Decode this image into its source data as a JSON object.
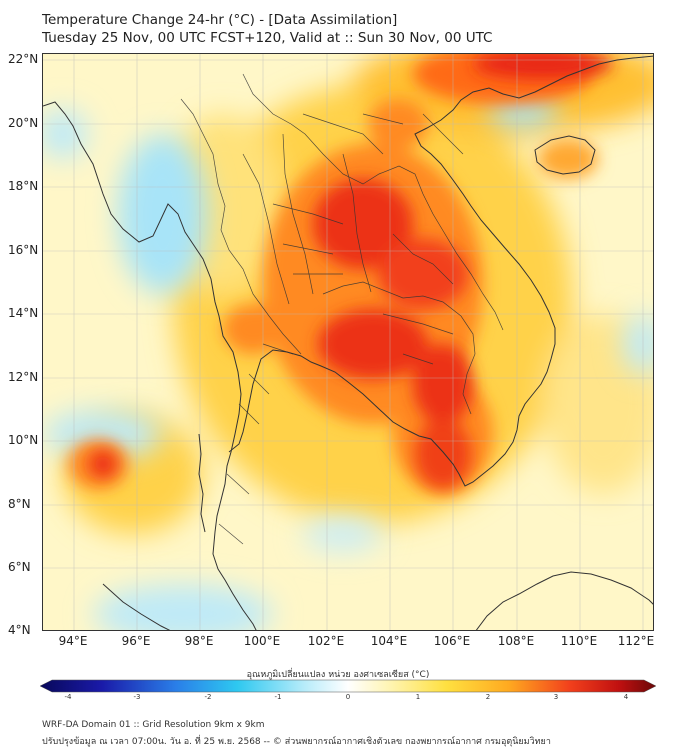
{
  "header": {
    "title_line1": "Temperature Change 24-hr (°C) - [Data Assimilation]",
    "title_line2": "Tuesday 25 Nov, 00 UTC FCST+120, Valid at :: Sun 30 Nov, 00 UTC"
  },
  "map": {
    "lat_labels": [
      "22°N",
      "20°N",
      "18°N",
      "16°N",
      "14°N",
      "12°N",
      "10°N",
      "8°N",
      "6°N",
      "4°N"
    ],
    "lon_labels": [
      "94°E",
      "96°E",
      "98°E",
      "100°E",
      "102°E",
      "104°E",
      "106°E",
      "108°E",
      "110°E",
      "112°E"
    ],
    "extent": {
      "lon_min": 93,
      "lon_max": 112.3,
      "lat_min": 4,
      "lat_max": 22.2
    },
    "colors": {
      "background": "#fff7c8",
      "warm": "#ffcc33",
      "hot": "#ff7a1a",
      "hottest": "#e8281a",
      "cool": "#a8e4f8",
      "coastline": "#333333"
    }
  },
  "colorbar": {
    "label": "อุณหภูมิเปลี่ยนแปลง หน่วย องศาเซลเซียส (°C)",
    "ticks": [
      "-4",
      "-3",
      "-2",
      "-1",
      "0",
      "1",
      "2",
      "3",
      "4"
    ],
    "min": -4,
    "max": 4
  },
  "footer": {
    "line1": "WRF-DA Domain 01 :: Grid Resolution 9km x 9km",
    "line2": "ปรับปรุงข้อมูล ณ เวลา 07:00น. วัน อ. ที่ 25 พ.ย. 2568 -- © ส่วนพยากรณ์อากาศเชิงตัวเลข กองพยากรณ์อากาศ กรมอุตุนิยมวิทยา"
  }
}
